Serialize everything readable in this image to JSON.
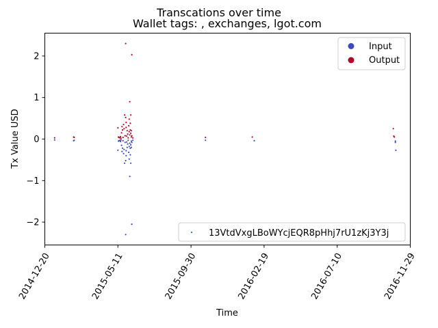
{
  "chart_data": {
    "type": "scatter",
    "title": "Transcations over time",
    "subtitle": "Wallet tags: , exchanges, lgot.com",
    "xlabel": "Time",
    "ylabel": "Tx Value USD",
    "x_ticks": [
      "2014-12-20",
      "2015-05-11",
      "2015-09-30",
      "2016-02-19",
      "2016-07-10",
      "2016-11-29"
    ],
    "x_range": [
      "2014-12-20",
      "2016-11-29"
    ],
    "y_ticks": [
      "−2",
      "−1",
      "0",
      "1",
      "2"
    ],
    "ylim": [
      -2.55,
      2.55
    ],
    "legend_class": {
      "placement": "top-right",
      "entries": [
        {
          "label": "Input",
          "color": "#3b4cc0"
        },
        {
          "label": "Output",
          "color": "#b40426"
        }
      ]
    },
    "legend_series": {
      "placement": "bottom-right",
      "label": "13VtdVxgLBoWYcjEQR8pHhj7rU1zKj3Y3j",
      "color": "#3b76c4"
    },
    "series": [
      {
        "name": "Output",
        "color": "#b40426",
        "points": [
          [
            "2015-01-08",
            0.03
          ],
          [
            "2015-02-14",
            0.05
          ],
          [
            "2015-02-15",
            0.04
          ],
          [
            "2015-05-11",
            0.27
          ],
          [
            "2015-05-12",
            0.05
          ],
          [
            "2015-05-13",
            0.04
          ],
          [
            "2015-05-15",
            0.03
          ],
          [
            "2015-05-16",
            0.06
          ],
          [
            "2015-05-17",
            0.02
          ],
          [
            "2015-05-18",
            0.15
          ],
          [
            "2015-05-19",
            0.3
          ],
          [
            "2015-05-20",
            0.22
          ],
          [
            "2015-05-21",
            0.04
          ],
          [
            "2015-05-22",
            0.35
          ],
          [
            "2015-05-23",
            0.25
          ],
          [
            "2015-05-24",
            0.58
          ],
          [
            "2015-05-25",
            0.08
          ],
          [
            "2015-05-26",
            2.3
          ],
          [
            "2015-05-26",
            0.52
          ],
          [
            "2015-05-27",
            0.28
          ],
          [
            "2015-05-27",
            0.4
          ],
          [
            "2015-05-28",
            0.07
          ],
          [
            "2015-05-29",
            0.2
          ],
          [
            "2015-05-30",
            0.12
          ],
          [
            "2015-05-31",
            0.03
          ],
          [
            "2015-06-01",
            0.32
          ],
          [
            "2015-06-02",
            0.48
          ],
          [
            "2015-06-02",
            0.18
          ],
          [
            "2015-06-03",
            0.9
          ],
          [
            "2015-06-03",
            0.1
          ],
          [
            "2015-06-04",
            0.38
          ],
          [
            "2015-06-04",
            0.22
          ],
          [
            "2015-06-05",
            0.58
          ],
          [
            "2015-06-05",
            0.14
          ],
          [
            "2015-06-06",
            0.05
          ],
          [
            "2015-06-06",
            0.2
          ],
          [
            "2015-06-07",
            2.03
          ],
          [
            "2015-06-07",
            0.08
          ],
          [
            "2015-06-09",
            0.03
          ],
          [
            "2015-10-28",
            0.04
          ],
          [
            "2016-01-27",
            0.05
          ],
          [
            "2016-10-27",
            0.25
          ],
          [
            "2016-10-28",
            0.07
          ],
          [
            "2016-10-29",
            0.05
          ]
        ]
      },
      {
        "name": "Input",
        "color": "#3b4cc0",
        "points": [
          [
            "2015-01-08",
            -0.02
          ],
          [
            "2015-02-14",
            -0.04
          ],
          [
            "2015-02-15",
            -0.03
          ],
          [
            "2015-05-11",
            -0.27
          ],
          [
            "2015-05-12",
            -0.05
          ],
          [
            "2015-05-13",
            -0.04
          ],
          [
            "2015-05-15",
            -0.03
          ],
          [
            "2015-05-16",
            -0.06
          ],
          [
            "2015-05-17",
            -0.02
          ],
          [
            "2015-05-18",
            -0.15
          ],
          [
            "2015-05-19",
            -0.3
          ],
          [
            "2015-05-20",
            -0.22
          ],
          [
            "2015-05-21",
            -0.04
          ],
          [
            "2015-05-22",
            -0.35
          ],
          [
            "2015-05-23",
            -0.25
          ],
          [
            "2015-05-24",
            -0.58
          ],
          [
            "2015-05-25",
            -0.08
          ],
          [
            "2015-05-26",
            -2.3
          ],
          [
            "2015-05-26",
            -0.52
          ],
          [
            "2015-05-27",
            -0.28
          ],
          [
            "2015-05-27",
            -0.4
          ],
          [
            "2015-05-28",
            -0.07
          ],
          [
            "2015-05-29",
            -0.2
          ],
          [
            "2015-05-30",
            -0.12
          ],
          [
            "2015-05-31",
            -0.03
          ],
          [
            "2015-06-01",
            -0.32
          ],
          [
            "2015-06-02",
            -0.48
          ],
          [
            "2015-06-02",
            -0.18
          ],
          [
            "2015-06-03",
            -0.9
          ],
          [
            "2015-06-03",
            -0.1
          ],
          [
            "2015-06-04",
            -0.38
          ],
          [
            "2015-06-04",
            -0.22
          ],
          [
            "2015-06-05",
            -0.58
          ],
          [
            "2015-06-05",
            -0.14
          ],
          [
            "2015-06-06",
            -0.05
          ],
          [
            "2015-06-06",
            -0.2
          ],
          [
            "2015-06-07",
            -2.05
          ],
          [
            "2015-06-07",
            -0.08
          ],
          [
            "2015-06-09",
            -0.03
          ],
          [
            "2015-10-28",
            -0.03
          ],
          [
            "2016-01-31",
            -0.04
          ],
          [
            "2016-10-31",
            -0.05
          ],
          [
            "2016-10-31",
            -0.08
          ],
          [
            "2016-11-01",
            -0.27
          ]
        ]
      }
    ]
  }
}
